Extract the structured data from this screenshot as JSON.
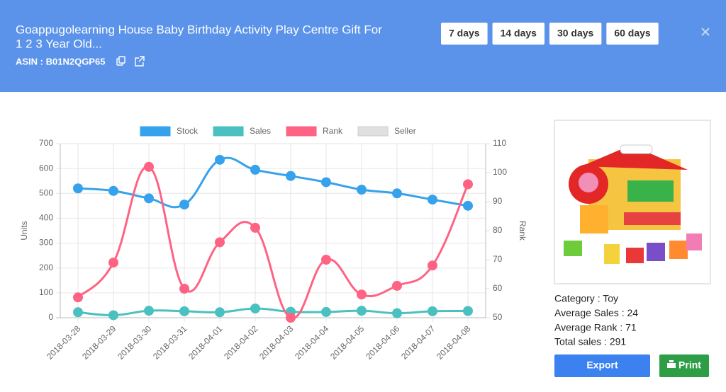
{
  "header": {
    "title": [
      "Goappugolearning House Baby Birthday Activity Play Centre Gift For",
      "1 2 3 Year Old..."
    ],
    "asin": "ASIN : B01N2QGP65",
    "ranges": [
      "7 days",
      "14 days",
      "30 days",
      "60 days"
    ]
  },
  "chart_data": {
    "type": "line",
    "categories": [
      "2018-03-28",
      "2018-03-29",
      "2018-03-30",
      "2018-03-31",
      "2018-04-01",
      "2018-04-02",
      "2018-04-03",
      "2018-04-04",
      "2018-04-05",
      "2018-04-06",
      "2018-04-07",
      "2018-04-08"
    ],
    "series": [
      {
        "name": "Stock",
        "color": "#36a2eb",
        "values": [
          520,
          510,
          480,
          455,
          635,
          595,
          570,
          545,
          515,
          500,
          475,
          450
        ]
      },
      {
        "name": "Sales",
        "color": "#4bc0c0",
        "values": [
          22,
          10,
          28,
          26,
          22,
          37,
          24,
          23,
          28,
          18,
          26,
          27
        ]
      },
      {
        "name": "Rank",
        "color": "#ff6384",
        "axis": "y2",
        "values": [
          57,
          69,
          102,
          60,
          76,
          81,
          50,
          70,
          58,
          61,
          68,
          96
        ]
      },
      {
        "name": "Seller",
        "color": "#e0e0e0"
      }
    ],
    "ylabel": "Units",
    "y2label": "Rank",
    "ylim": [
      0,
      700
    ],
    "yticks": [
      0,
      100,
      200,
      300,
      400,
      500,
      600,
      700
    ],
    "y2lim": [
      50,
      110
    ],
    "y2ticks": [
      50,
      60,
      70,
      80,
      90,
      100,
      110
    ],
    "grid": true,
    "legend": "top"
  },
  "info": [
    "Category : Toy",
    "Average Sales : 24",
    "Average Rank : 71",
    "Total sales : 291"
  ],
  "actions": [
    "Export",
    "Print"
  ]
}
